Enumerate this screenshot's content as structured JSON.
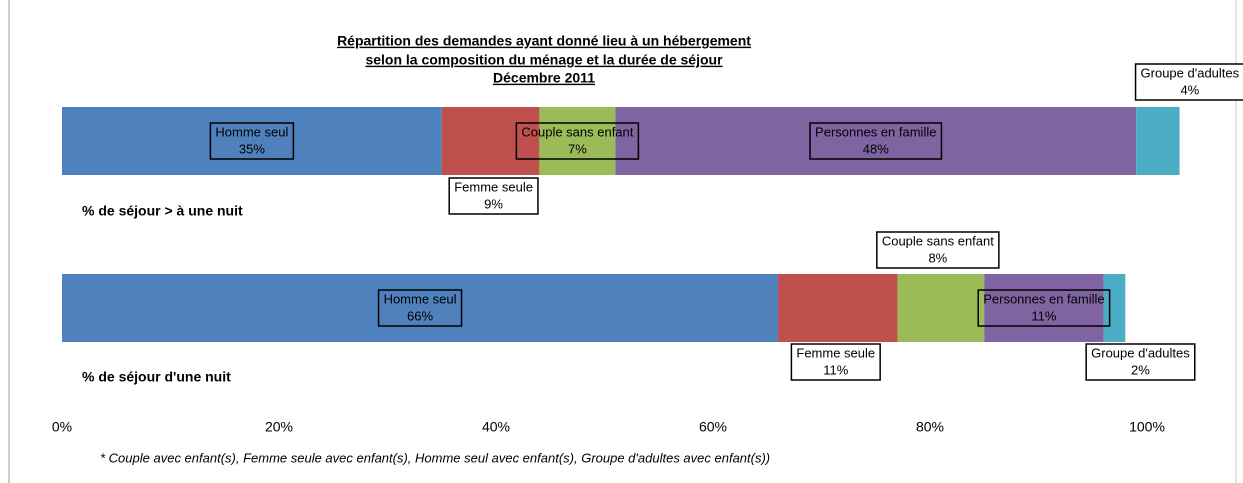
{
  "chart_data": {
    "type": "stacked-bar-horizontal",
    "title": [
      "Répartition des demandes ayant donné lieu à un hébergement",
      "selon la composition du ménage et la durée de séjour",
      "Décembre 2011"
    ],
    "categories": [
      "% de séjour > à une nuit",
      "% de séjour d'une nuit"
    ],
    "series": [
      {
        "name": "Homme seul",
        "color": "#4f81bd",
        "values": [
          35,
          66
        ],
        "value_labels": [
          "35%",
          "66%"
        ]
      },
      {
        "name": "Femme seule",
        "color": "#c0504d",
        "values": [
          9,
          11
        ],
        "value_labels": [
          "9%",
          "11%"
        ]
      },
      {
        "name": "Couple sans enfant",
        "color": "#9bbb59",
        "values": [
          7,
          8
        ],
        "value_labels": [
          "7%",
          "8%"
        ]
      },
      {
        "name": "Personnes en famille",
        "color": "#8064a2",
        "values": [
          48,
          11
        ],
        "value_labels": [
          "48%",
          "11%"
        ]
      },
      {
        "name": "Groupe d'adultes",
        "color": "#4bacc6",
        "values": [
          4,
          2
        ],
        "value_labels": [
          "4%",
          "2%"
        ]
      }
    ],
    "xlim": [
      0,
      100
    ],
    "xticks": [
      {
        "value": 0,
        "label": "0%"
      },
      {
        "value": 20,
        "label": "20%"
      },
      {
        "value": 40,
        "label": "40%"
      },
      {
        "value": 60,
        "label": "60%"
      },
      {
        "value": 80,
        "label": "80%"
      },
      {
        "value": 100,
        "label": "100%"
      }
    ],
    "footnote": "* Couple avec enfant(s), Femme seule avec enfant(s), Homme seul avec enfant(s), Groupe d'adultes avec enfant(s))"
  }
}
